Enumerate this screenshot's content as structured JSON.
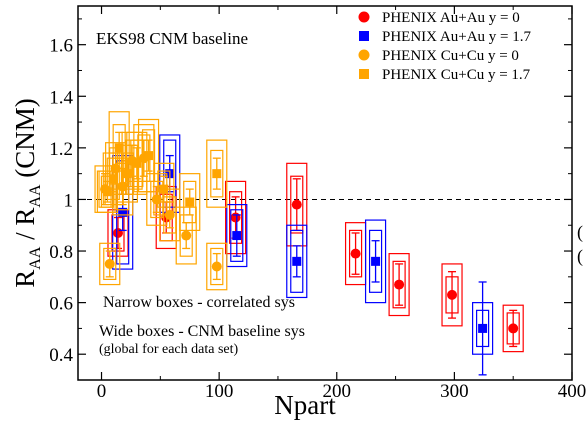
{
  "chart_data": {
    "type": "scatter",
    "xlabel": "Npart",
    "ylabel_main": "R",
    "ylabel_sub1": "AA",
    "ylabel_slash": " / R",
    "ylabel_sub2": "AA",
    "ylabel_tail": " (CNM)",
    "xlim": [
      -20,
      400
    ],
    "ylim": [
      0.3,
      1.75
    ],
    "xticks": [
      0,
      100,
      200,
      300,
      400
    ],
    "yticks": [
      0.4,
      0.6,
      0.8,
      1.0,
      1.2,
      1.4,
      1.6
    ],
    "xtick_labels": [
      "0",
      "100",
      "200",
      "300",
      "400"
    ],
    "ytick_labels": [
      "0.4",
      "0.6",
      "0.8",
      "1",
      "1.2",
      "1.4",
      "1.6"
    ],
    "reference_line": 1.0,
    "annotations": {
      "baseline": "EKS98 CNM baseline",
      "narrow": "Narrow boxes - correlated sys",
      "wide": "Wide boxes - CNM baseline sys",
      "global": "(global for each data set)"
    },
    "legend_position": "top-right",
    "series": [
      {
        "name": "PHENIX Au+Au y = 0",
        "color": "#ff0000",
        "marker": "circle",
        "points": [
          {
            "x": 14,
            "y": 0.87,
            "err": 0.06,
            "nbox": 0.07,
            "wbox": 0.09
          },
          {
            "x": 55,
            "y": 0.93,
            "err": 0.06,
            "nbox": 0.09,
            "wbox": 0.12
          },
          {
            "x": 114,
            "y": 0.93,
            "err": 0.08,
            "nbox": 0.1,
            "wbox": 0.14
          },
          {
            "x": 166,
            "y": 0.98,
            "err": 0.1,
            "nbox": 0.11,
            "wbox": 0.16
          },
          {
            "x": 216,
            "y": 0.79,
            "err": 0.08,
            "nbox": 0.09,
            "wbox": 0.12
          },
          {
            "x": 253,
            "y": 0.67,
            "err": 0.08,
            "nbox": 0.09,
            "wbox": 0.12
          },
          {
            "x": 298,
            "y": 0.63,
            "err": 0.09,
            "nbox": 0.07,
            "wbox": 0.12
          },
          {
            "x": 350,
            "y": 0.5,
            "err": 0.07,
            "nbox": 0.06,
            "wbox": 0.09
          }
        ]
      },
      {
        "name": "PHENIX Au+Au y = 1.7",
        "color": "#0000ff",
        "marker": "square",
        "points": [
          {
            "x": 18,
            "y": 0.95,
            "err": 0.07,
            "nbox": 0.2,
            "wbox": 0.22
          },
          {
            "x": 58,
            "y": 1.1,
            "err": 0.07,
            "nbox": 0.13,
            "wbox": 0.15
          },
          {
            "x": 115,
            "y": 0.86,
            "err": 0.08,
            "nbox": 0.1,
            "wbox": 0.12
          },
          {
            "x": 166,
            "y": 0.76,
            "err": 0.06,
            "nbox": 0.12,
            "wbox": 0.14
          },
          {
            "x": 233,
            "y": 0.76,
            "err": 0.08,
            "nbox": 0.12,
            "wbox": 0.16
          },
          {
            "x": 324,
            "y": 0.5,
            "err": 0.18,
            "nbox": 0.07,
            "wbox": 0.1
          }
        ]
      },
      {
        "name": "PHENIX Cu+Cu y = 0",
        "color": "#ffa500",
        "marker": "circle",
        "points": [
          {
            "x": 3,
            "y": 1.04,
            "err": 0.06,
            "nbox": 0.07,
            "wbox": 0.09
          },
          {
            "x": 7,
            "y": 0.75,
            "err": 0.05,
            "nbox": 0.06,
            "wbox": 0.08
          },
          {
            "x": 12,
            "y": 1.12,
            "err": 0.06,
            "nbox": 0.08,
            "wbox": 0.1
          },
          {
            "x": 18,
            "y": 1.05,
            "err": 0.07,
            "nbox": 0.09,
            "wbox": 0.11
          },
          {
            "x": 26,
            "y": 1.15,
            "err": 0.06,
            "nbox": 0.08,
            "wbox": 0.11
          },
          {
            "x": 36,
            "y": 1.16,
            "err": 0.07,
            "nbox": 0.09,
            "wbox": 0.13
          },
          {
            "x": 47,
            "y": 1.0,
            "err": 0.05,
            "nbox": 0.07,
            "wbox": 0.1
          },
          {
            "x": 58,
            "y": 0.94,
            "err": 0.05,
            "nbox": 0.07,
            "wbox": 0.1
          },
          {
            "x": 72,
            "y": 0.86,
            "err": 0.05,
            "nbox": 0.08,
            "wbox": 0.11
          },
          {
            "x": 98,
            "y": 0.74,
            "err": 0.05,
            "nbox": 0.07,
            "wbox": 0.09
          }
        ]
      },
      {
        "name": "PHENIX Cu+Cu y = 1.7",
        "color": "#ffa500",
        "marker": "square",
        "points": [
          {
            "x": 5,
            "y": 1.03,
            "err": 0.04,
            "nbox": 0.06,
            "wbox": 0.08
          },
          {
            "x": 10,
            "y": 1.08,
            "err": 0.05,
            "nbox": 0.08,
            "wbox": 0.1
          },
          {
            "x": 15,
            "y": 1.2,
            "err": 0.06,
            "nbox": 0.09,
            "wbox": 0.14
          },
          {
            "x": 22,
            "y": 1.1,
            "err": 0.05,
            "nbox": 0.08,
            "wbox": 0.11
          },
          {
            "x": 30,
            "y": 1.14,
            "err": 0.06,
            "nbox": 0.09,
            "wbox": 0.12
          },
          {
            "x": 40,
            "y": 1.17,
            "err": 0.06,
            "nbox": 0.1,
            "wbox": 0.14
          },
          {
            "x": 53,
            "y": 1.04,
            "err": 0.05,
            "nbox": 0.07,
            "wbox": 0.1
          },
          {
            "x": 75,
            "y": 0.99,
            "err": 0.05,
            "nbox": 0.08,
            "wbox": 0.11
          },
          {
            "x": 98,
            "y": 1.1,
            "err": 0.06,
            "nbox": 0.09,
            "wbox": 0.13
          }
        ]
      }
    ]
  },
  "edge_glyphs": {
    "right_1": "(",
    "right_2": "("
  }
}
